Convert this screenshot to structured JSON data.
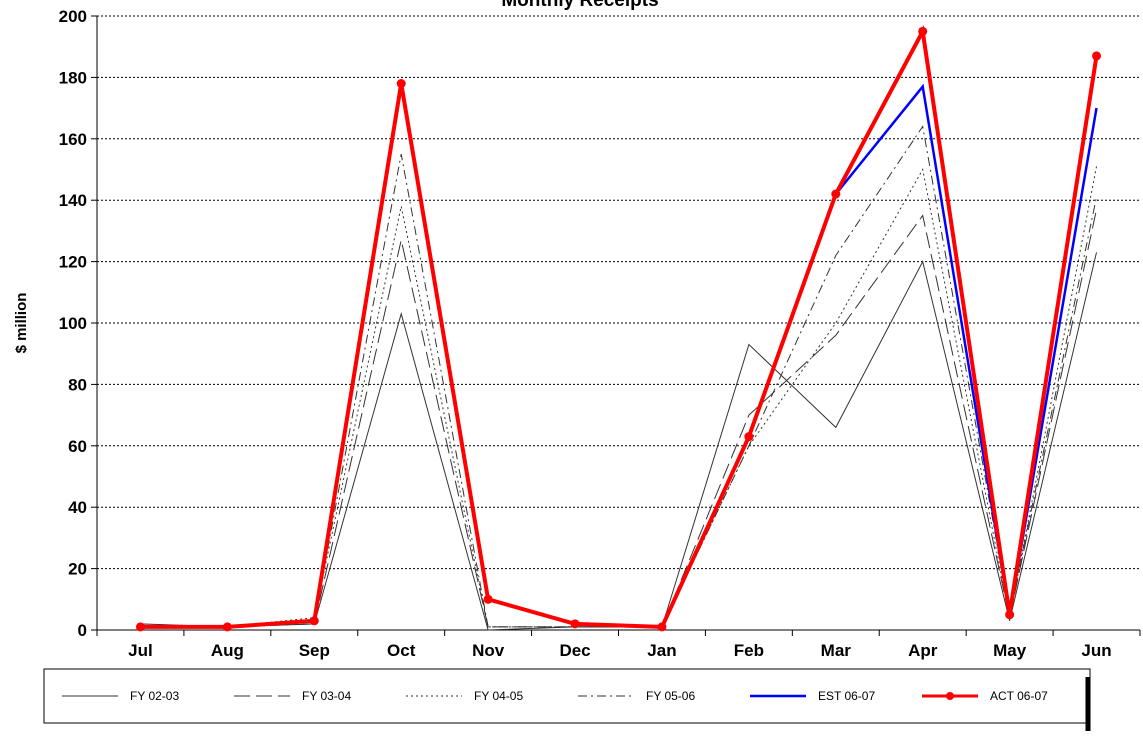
{
  "chart_data": {
    "type": "line",
    "title": "Monthly Receipts",
    "xlabel": "",
    "ylabel": "$ million",
    "ylim": [
      0,
      200
    ],
    "yticks": [
      0,
      20,
      40,
      60,
      80,
      100,
      120,
      140,
      160,
      180,
      200
    ],
    "grid": "horizontal",
    "legend_position": "bottom",
    "categories": [
      "Jul",
      "Aug",
      "Sep",
      "Oct",
      "Nov",
      "Dec",
      "Jan",
      "Feb",
      "Mar",
      "Apr",
      "May",
      "Jun"
    ],
    "series": [
      {
        "name": "FY 02-03",
        "style": "solid-thin",
        "color": "#333333",
        "values": [
          2,
          1,
          2,
          103,
          0,
          1,
          1,
          93,
          66,
          120,
          3,
          123
        ]
      },
      {
        "name": "FY 03-04",
        "style": "long-dash",
        "color": "#333333",
        "values": [
          1,
          1,
          2,
          127,
          1,
          1,
          1,
          70,
          96,
          135,
          4,
          137
        ]
      },
      {
        "name": "FY 04-05",
        "style": "dotted",
        "color": "#333333",
        "values": [
          1,
          1,
          4,
          138,
          1,
          1,
          1,
          60,
          100,
          150,
          4,
          151
        ]
      },
      {
        "name": "FY 05-06",
        "style": "dash-dot",
        "color": "#333333",
        "values": [
          1,
          1,
          3,
          155,
          1,
          1,
          1,
          60,
          122,
          164,
          5,
          141
        ]
      },
      {
        "name": "EST 06-07",
        "style": "solid",
        "color": "#0000ff",
        "values": [
          1,
          1,
          3,
          178,
          10,
          2,
          1,
          63,
          142,
          177,
          5,
          170
        ]
      },
      {
        "name": "ACT 06-07",
        "style": "solid-marker",
        "color": "#ff0000",
        "values": [
          1,
          1,
          3,
          178,
          10,
          2,
          1,
          63,
          142,
          195,
          5,
          187
        ]
      }
    ]
  }
}
